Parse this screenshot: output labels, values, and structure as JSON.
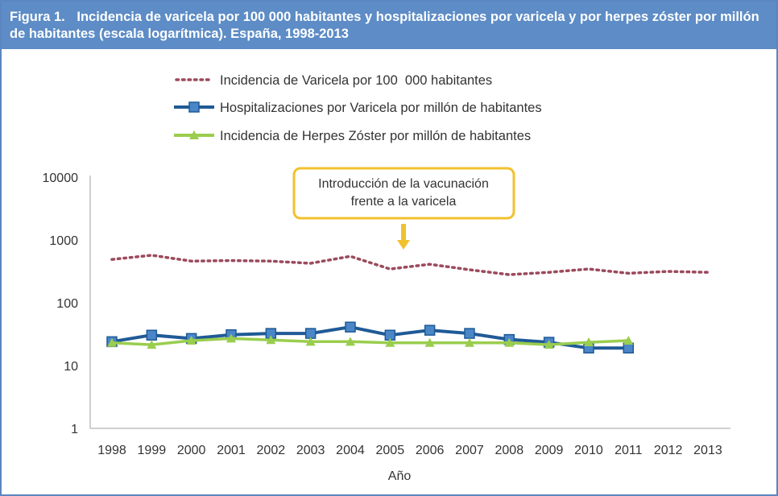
{
  "header": {
    "figure_label": "Figura 1.",
    "title": "Incidencia de varicela por 100 000 habitantes y hospitalizaciones por varicela y por herpes zóster por millón de habitantes (escala logarítmica). España, 1998-2013"
  },
  "chart_data": {
    "type": "line",
    "title": "",
    "xlabel": "Año",
    "ylabel": "",
    "yscale": "log",
    "ylim": [
      1,
      10000
    ],
    "yticks": [
      "1",
      "10",
      "100",
      "1000",
      "10000"
    ],
    "categories": [
      "1998",
      "1999",
      "2000",
      "2001",
      "2002",
      "2003",
      "2004",
      "2005",
      "2006",
      "2007",
      "2008",
      "2009",
      "2010",
      "2011",
      "2012",
      "2013"
    ],
    "grid": false,
    "legend_position": "top",
    "series": [
      {
        "name": "Incidencia de Varicela por 100  000 habitantes",
        "color": "#9b4a5c",
        "style": "dotted",
        "values": [
          490,
          570,
          460,
          470,
          460,
          425,
          550,
          345,
          410,
          335,
          280,
          305,
          345,
          295,
          315,
          305
        ]
      },
      {
        "name": "Hospitalizaciones por Varicela por millón de habitantes",
        "color": "#1f5a96",
        "marker": "square",
        "marker_color": "#4a86c8",
        "values": [
          24,
          30.5,
          27,
          31,
          32.5,
          32.5,
          41,
          30.5,
          36.5,
          32.5,
          26,
          23.5,
          19,
          19,
          null,
          null
        ]
      },
      {
        "name": "Incidencia de Herpes Zóster por millón de habitantes",
        "color": "#9acd4e",
        "marker": "triangle",
        "values": [
          23,
          21.5,
          25,
          27,
          25.5,
          24,
          24,
          23,
          23,
          23,
          23,
          21.5,
          23.5,
          25,
          null,
          null
        ]
      }
    ],
    "annotation": {
      "text_line1": "Introducción de la vacunación",
      "text_line2": "frente a la varicela",
      "border_color": "#f2c12e",
      "at": "2004-2005"
    }
  }
}
